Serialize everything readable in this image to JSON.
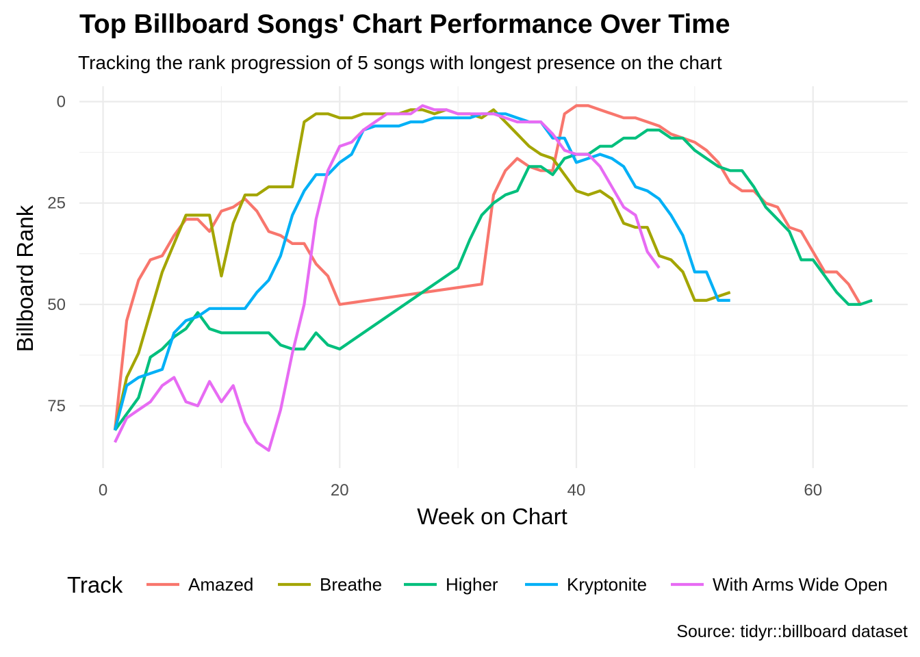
{
  "title": "Top Billboard Songs' Chart Performance Over Time",
  "subtitle": "Tracking the rank progression of 5 songs with longest presence on the chart",
  "caption": "Source: tidyr::billboard dataset",
  "chart_data": {
    "type": "line",
    "title": "Top Billboard Songs' Chart Performance Over Time",
    "subtitle": "Tracking the rank progression of 5 songs with longest presence on the chart",
    "xlabel": "Week on Chart",
    "ylabel": "Billboard Rank",
    "xlim": [
      -2,
      68
    ],
    "ylim": [
      0,
      87
    ],
    "y_reversed": true,
    "x_ticks": [
      0,
      20,
      40,
      60
    ],
    "y_ticks": [
      0,
      25,
      50,
      75
    ],
    "grid": true,
    "legend_title": "Track",
    "legend_position": "bottom",
    "series": [
      {
        "name": "Amazed",
        "color": "#F8766D",
        "x": [
          1,
          2,
          3,
          4,
          5,
          6,
          7,
          8,
          9,
          10,
          11,
          12,
          13,
          14,
          15,
          16,
          17,
          18,
          19,
          20,
          32,
          33,
          34,
          35,
          36,
          37,
          38,
          39,
          40,
          41,
          42,
          43,
          44,
          45,
          46,
          47,
          48,
          49,
          50,
          51,
          52,
          53,
          54,
          55,
          56,
          57,
          58,
          59,
          60,
          61,
          62,
          63,
          64
        ],
        "y": [
          81,
          54,
          44,
          39,
          38,
          33,
          29,
          29,
          32,
          27,
          26,
          24,
          27,
          32,
          33,
          35,
          35,
          40,
          43,
          50,
          45,
          23,
          17,
          14,
          16,
          17,
          17,
          3,
          1,
          1,
          2,
          3,
          4,
          4,
          5,
          6,
          8,
          9,
          10,
          12,
          15,
          20,
          22,
          22,
          25,
          26,
          31,
          32,
          37,
          42,
          42,
          45,
          50
        ]
      },
      {
        "name": "Breathe",
        "color": "#A3A500",
        "x": [
          1,
          2,
          3,
          4,
          5,
          6,
          7,
          8,
          9,
          10,
          11,
          12,
          13,
          14,
          15,
          16,
          17,
          18,
          19,
          20,
          21,
          22,
          23,
          24,
          25,
          26,
          27,
          28,
          29,
          30,
          31,
          32,
          33,
          34,
          35,
          36,
          37,
          38,
          39,
          40,
          41,
          42,
          43,
          44,
          45,
          46,
          47,
          48,
          49,
          50,
          51,
          52,
          53
        ],
        "y": [
          81,
          68,
          62,
          52,
          42,
          35,
          28,
          28,
          28,
          43,
          30,
          23,
          23,
          21,
          21,
          21,
          5,
          3,
          3,
          4,
          4,
          3,
          3,
          3,
          3,
          2,
          2,
          3,
          2,
          3,
          3,
          4,
          2,
          5,
          8,
          11,
          13,
          14,
          18,
          22,
          23,
          22,
          24,
          30,
          31,
          31,
          38,
          39,
          42,
          49,
          49,
          48,
          47
        ]
      },
      {
        "name": "Higher",
        "color": "#00BF7D",
        "x": [
          1,
          2,
          3,
          4,
          5,
          6,
          7,
          8,
          9,
          10,
          11,
          12,
          13,
          14,
          15,
          16,
          17,
          18,
          19,
          20,
          30,
          31,
          32,
          33,
          34,
          35,
          36,
          37,
          38,
          39,
          40,
          41,
          42,
          43,
          44,
          45,
          46,
          47,
          48,
          49,
          50,
          51,
          52,
          53,
          54,
          55,
          56,
          57,
          58,
          59,
          60,
          61,
          62,
          63,
          64,
          65
        ],
        "y": [
          81,
          77,
          73,
          63,
          61,
          58,
          56,
          52,
          56,
          57,
          57,
          57,
          57,
          57,
          60,
          61,
          61,
          57,
          60,
          61,
          41,
          34,
          28,
          25,
          23,
          22,
          16,
          16,
          18,
          14,
          13,
          13,
          11,
          11,
          9,
          9,
          7,
          7,
          9,
          9,
          12,
          14,
          16,
          17,
          17,
          21,
          26,
          29,
          32,
          39,
          39,
          43,
          47,
          50,
          50,
          49
        ]
      },
      {
        "name": "Kryptonite",
        "color": "#00B0F6",
        "x": [
          1,
          2,
          3,
          4,
          5,
          6,
          7,
          8,
          9,
          10,
          11,
          12,
          13,
          14,
          15,
          16,
          17,
          18,
          19,
          20,
          21,
          22,
          23,
          24,
          25,
          26,
          27,
          28,
          29,
          30,
          31,
          32,
          33,
          34,
          35,
          36,
          37,
          38,
          39,
          40,
          41,
          42,
          43,
          44,
          45,
          46,
          47,
          48,
          49,
          50,
          51,
          52,
          53
        ],
        "y": [
          81,
          70,
          68,
          67,
          66,
          57,
          54,
          53,
          51,
          51,
          51,
          51,
          47,
          44,
          38,
          28,
          22,
          18,
          18,
          15,
          13,
          7,
          6,
          6,
          6,
          5,
          5,
          4,
          4,
          4,
          4,
          3,
          3,
          3,
          4,
          5,
          5,
          9,
          9,
          15,
          14,
          13,
          14,
          16,
          21,
          22,
          24,
          28,
          33,
          42,
          42,
          49,
          49
        ]
      },
      {
        "name": "With Arms Wide Open",
        "color": "#E76BF3",
        "x": [
          1,
          2,
          3,
          4,
          5,
          6,
          7,
          8,
          9,
          10,
          11,
          12,
          13,
          14,
          15,
          16,
          17,
          18,
          19,
          20,
          21,
          22,
          23,
          24,
          25,
          26,
          27,
          28,
          29,
          30,
          31,
          32,
          33,
          34,
          35,
          36,
          37,
          38,
          39,
          40,
          41,
          42,
          43,
          44,
          45,
          46,
          47
        ],
        "y": [
          84,
          78,
          76,
          74,
          70,
          68,
          74,
          75,
          69,
          74,
          70,
          79,
          84,
          86,
          76,
          62,
          50,
          29,
          17,
          11,
          10,
          7,
          5,
          3,
          3,
          3,
          1,
          2,
          2,
          3,
          3,
          3,
          3,
          4,
          5,
          5,
          5,
          8,
          12,
          13,
          13,
          16,
          21,
          26,
          28,
          37,
          41
        ]
      }
    ]
  }
}
